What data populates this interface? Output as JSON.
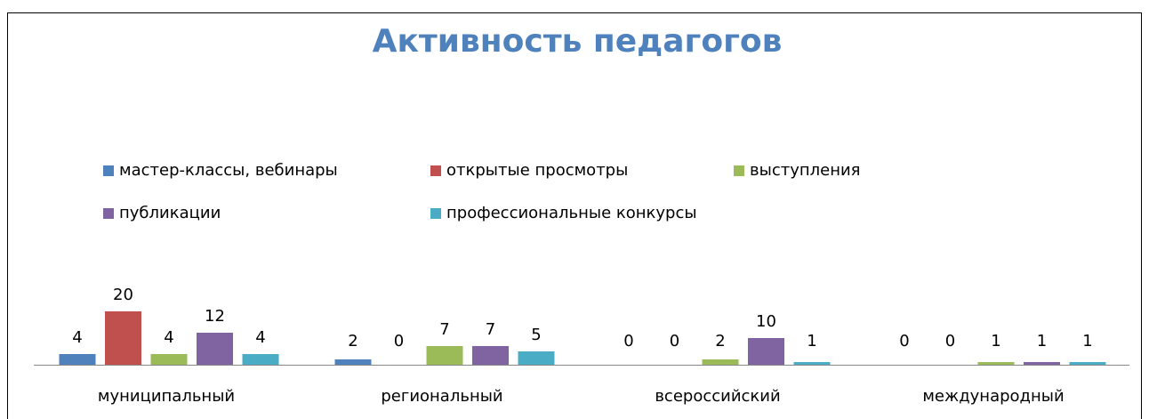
{
  "chart_data": {
    "type": "bar",
    "title": "Активность  педагогов",
    "categories": [
      "муниципальный",
      "региональный",
      "всероссийский",
      "международный"
    ],
    "series": [
      {
        "name": "мастер-классы, вебинары",
        "color": "#4f81bd",
        "values": [
          4,
          2,
          0,
          0
        ]
      },
      {
        "name": "открытые просмотры",
        "color": "#c0504d",
        "values": [
          20,
          0,
          0,
          0
        ]
      },
      {
        "name": "выступления",
        "color": "#9bbb59",
        "values": [
          4,
          7,
          2,
          1
        ]
      },
      {
        "name": "публикации",
        "color": "#8064a2",
        "values": [
          12,
          7,
          10,
          1
        ]
      },
      {
        "name": "профессиональные конкурсы",
        "color": "#4bacc6",
        "values": [
          4,
          5,
          1,
          1
        ]
      }
    ],
    "ylim": [
      0,
      20
    ],
    "legend": "top"
  }
}
